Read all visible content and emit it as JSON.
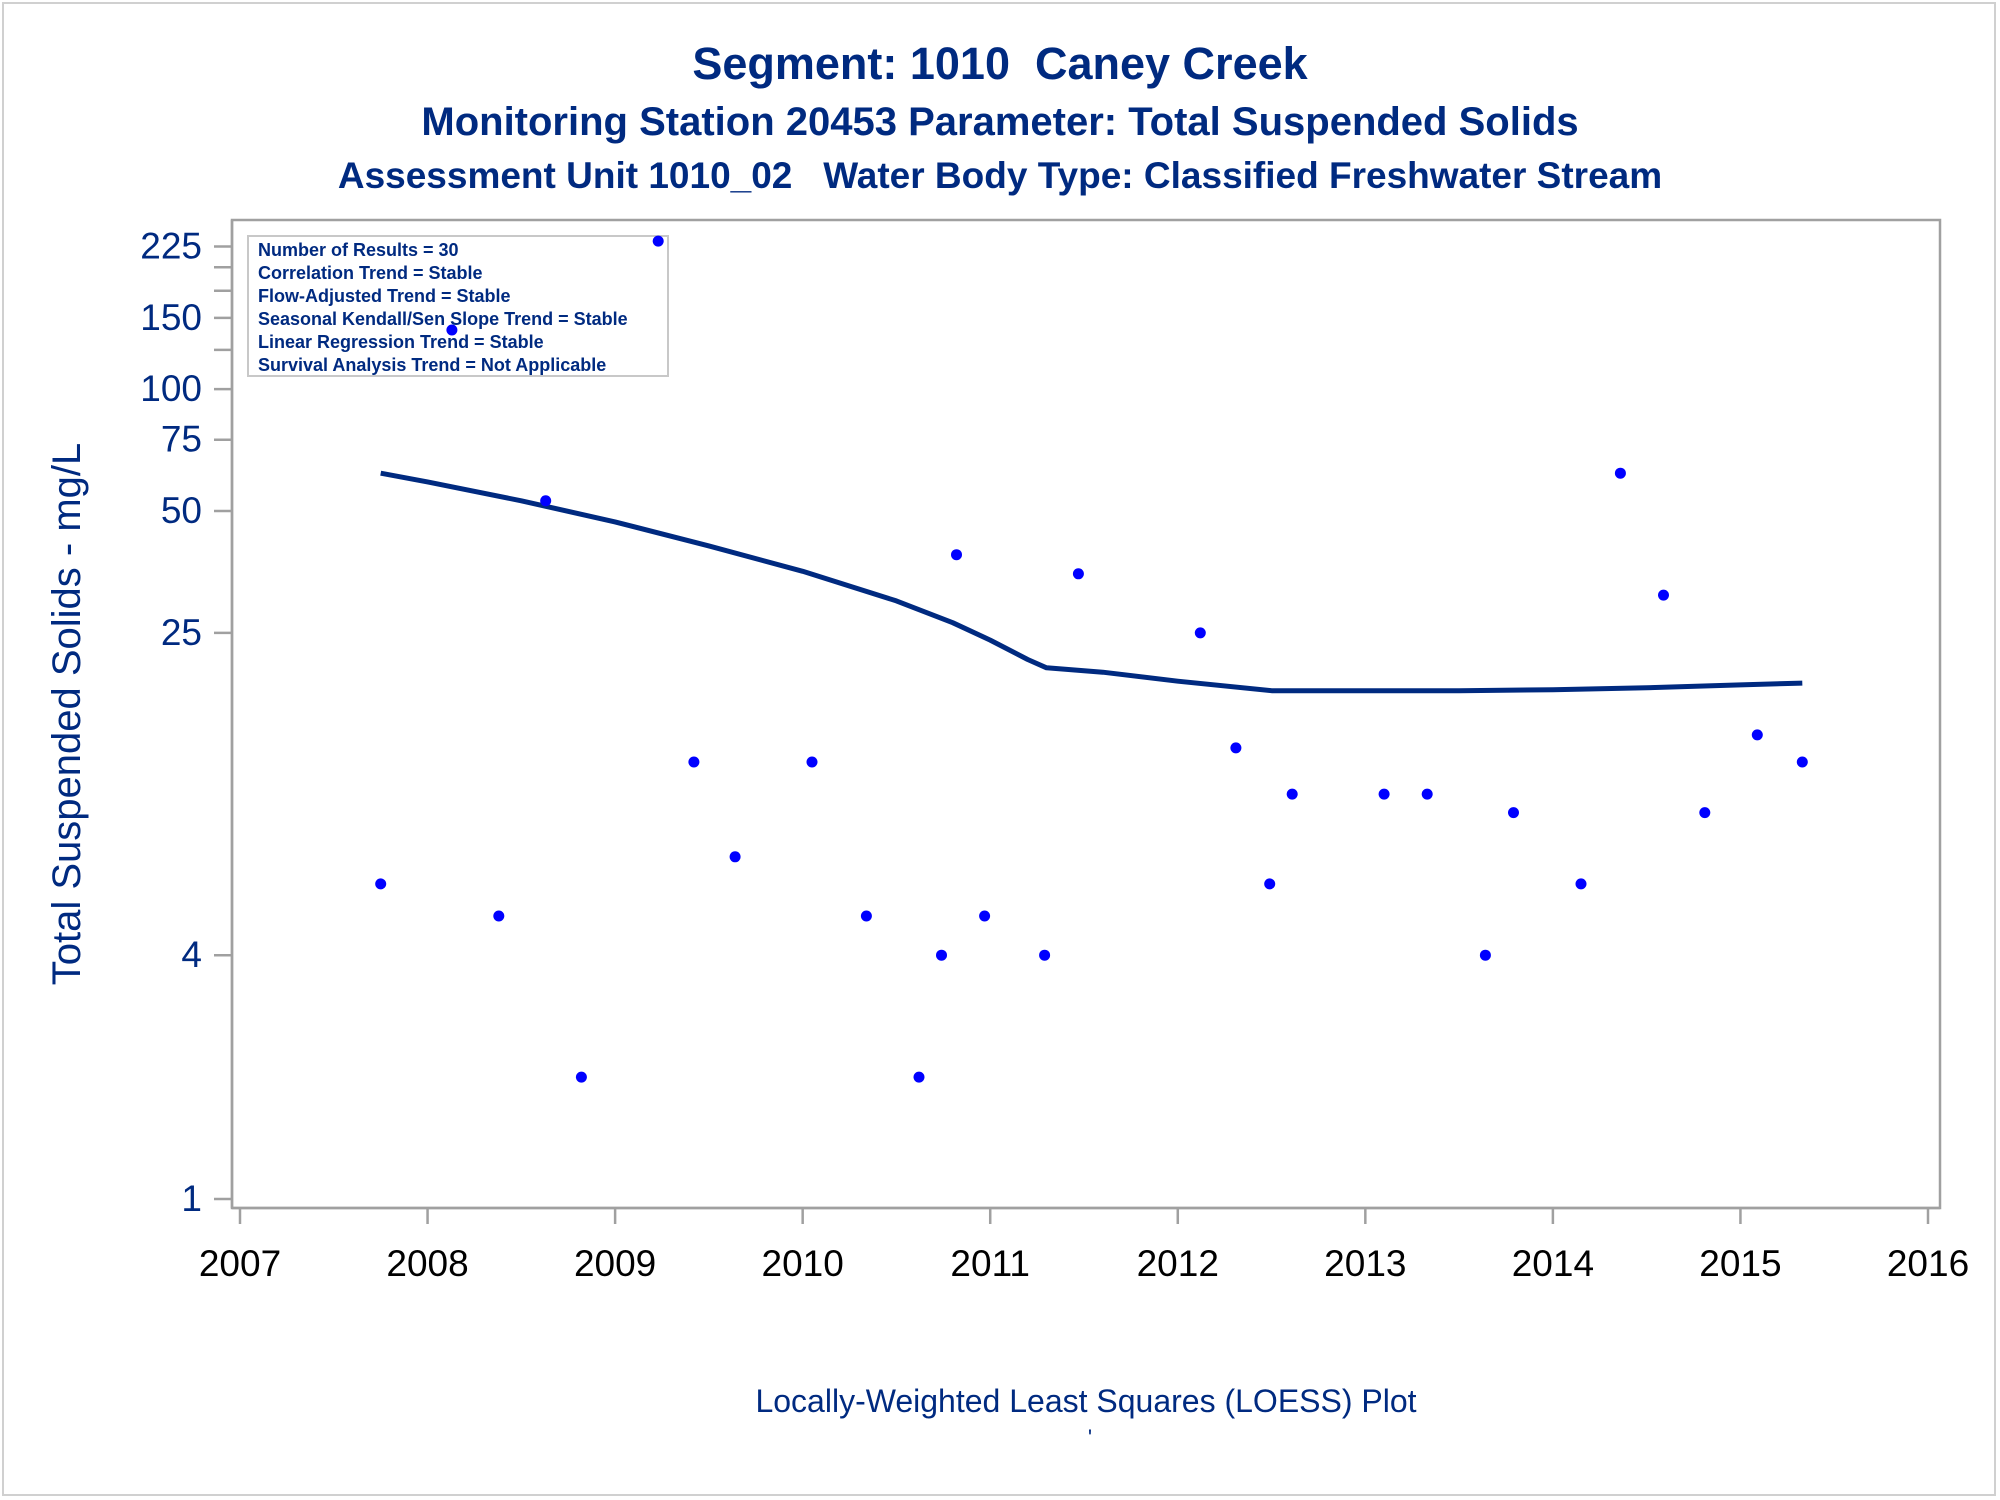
{
  "header": {
    "title": "Segment: 1010  Caney Creek",
    "subtitle1": "Monitoring Station 20453 Parameter: Total Suspended Solids",
    "subtitle2": "Assessment Unit 1010_02   Water Body Type: Classified Freshwater Stream"
  },
  "stats_box": {
    "lines": [
      "Number of Results = 30",
      "Correlation Trend = Stable",
      "Flow-Adjusted Trend = Stable",
      "Seasonal Kendall/Sen Slope Trend = Stable",
      "Linear Regression Trend = Stable",
      "Survival Analysis Trend = Not Applicable"
    ]
  },
  "footnote": "Locally-Weighted Least Squares (LOESS) Plot",
  "colors": {
    "text": "#002a80",
    "points": "#0000ff",
    "line": "#002a80",
    "axis": "#a0a0a0"
  },
  "chart_data": {
    "type": "scatter",
    "ylabel": "Total Suspended Solids - mg/L",
    "xlabel": "",
    "yscale": "log",
    "xlim": [
      2007,
      2016
    ],
    "ylim": [
      1,
      250
    ],
    "x_ticks": [
      2007,
      2008,
      2009,
      2010,
      2011,
      2012,
      2013,
      2014,
      2015,
      2016
    ],
    "y_ticks_labeled": [
      1,
      4,
      25,
      50,
      75,
      100,
      150,
      225
    ],
    "y_ticks_minor": [
      125,
      175,
      200
    ],
    "grid": false,
    "series": [
      {
        "kind": "points",
        "x": [
          2007.75,
          2008.13,
          2008.38,
          2008.63,
          2008.82,
          2009.23,
          2009.42,
          2009.64,
          2010.05,
          2010.34,
          2010.62,
          2010.74,
          2010.82,
          2010.97,
          2011.29,
          2011.47,
          2012.12,
          2012.31,
          2012.49,
          2012.61,
          2013.1,
          2013.33,
          2013.64,
          2013.79,
          2014.15,
          2014.36,
          2014.59,
          2014.81,
          2015.09,
          2015.33
        ],
        "y": [
          6,
          140,
          5,
          53,
          2,
          232,
          12,
          7,
          12,
          5,
          2,
          4,
          39,
          5,
          4,
          35,
          25,
          13,
          6,
          10,
          10,
          10,
          4,
          9,
          6,
          62,
          31,
          9,
          14,
          12
        ]
      },
      {
        "kind": "loess",
        "x": [
          2007.75,
          2008.0,
          2008.5,
          2009.0,
          2009.5,
          2010.0,
          2010.5,
          2010.8,
          2011.0,
          2011.2,
          2011.3,
          2011.6,
          2012.0,
          2012.5,
          2013.0,
          2013.5,
          2014.0,
          2014.5,
          2015.0,
          2015.33
        ],
        "y": [
          62,
          59,
          53,
          47,
          41,
          35.5,
          30,
          26.5,
          24,
          21.5,
          20.5,
          20,
          19,
          18,
          18,
          18,
          18.1,
          18.3,
          18.6,
          18.8
        ]
      }
    ]
  }
}
